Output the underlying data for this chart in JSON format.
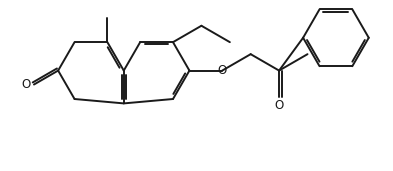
{
  "bg_color": "#ffffff",
  "line_color": "#1a1a1a",
  "line_width": 1.4,
  "figsize": [
    3.93,
    1.71
  ],
  "dpi": 100,
  "xlim": [
    0,
    10.5
  ],
  "ylim": [
    0,
    4.5
  ]
}
